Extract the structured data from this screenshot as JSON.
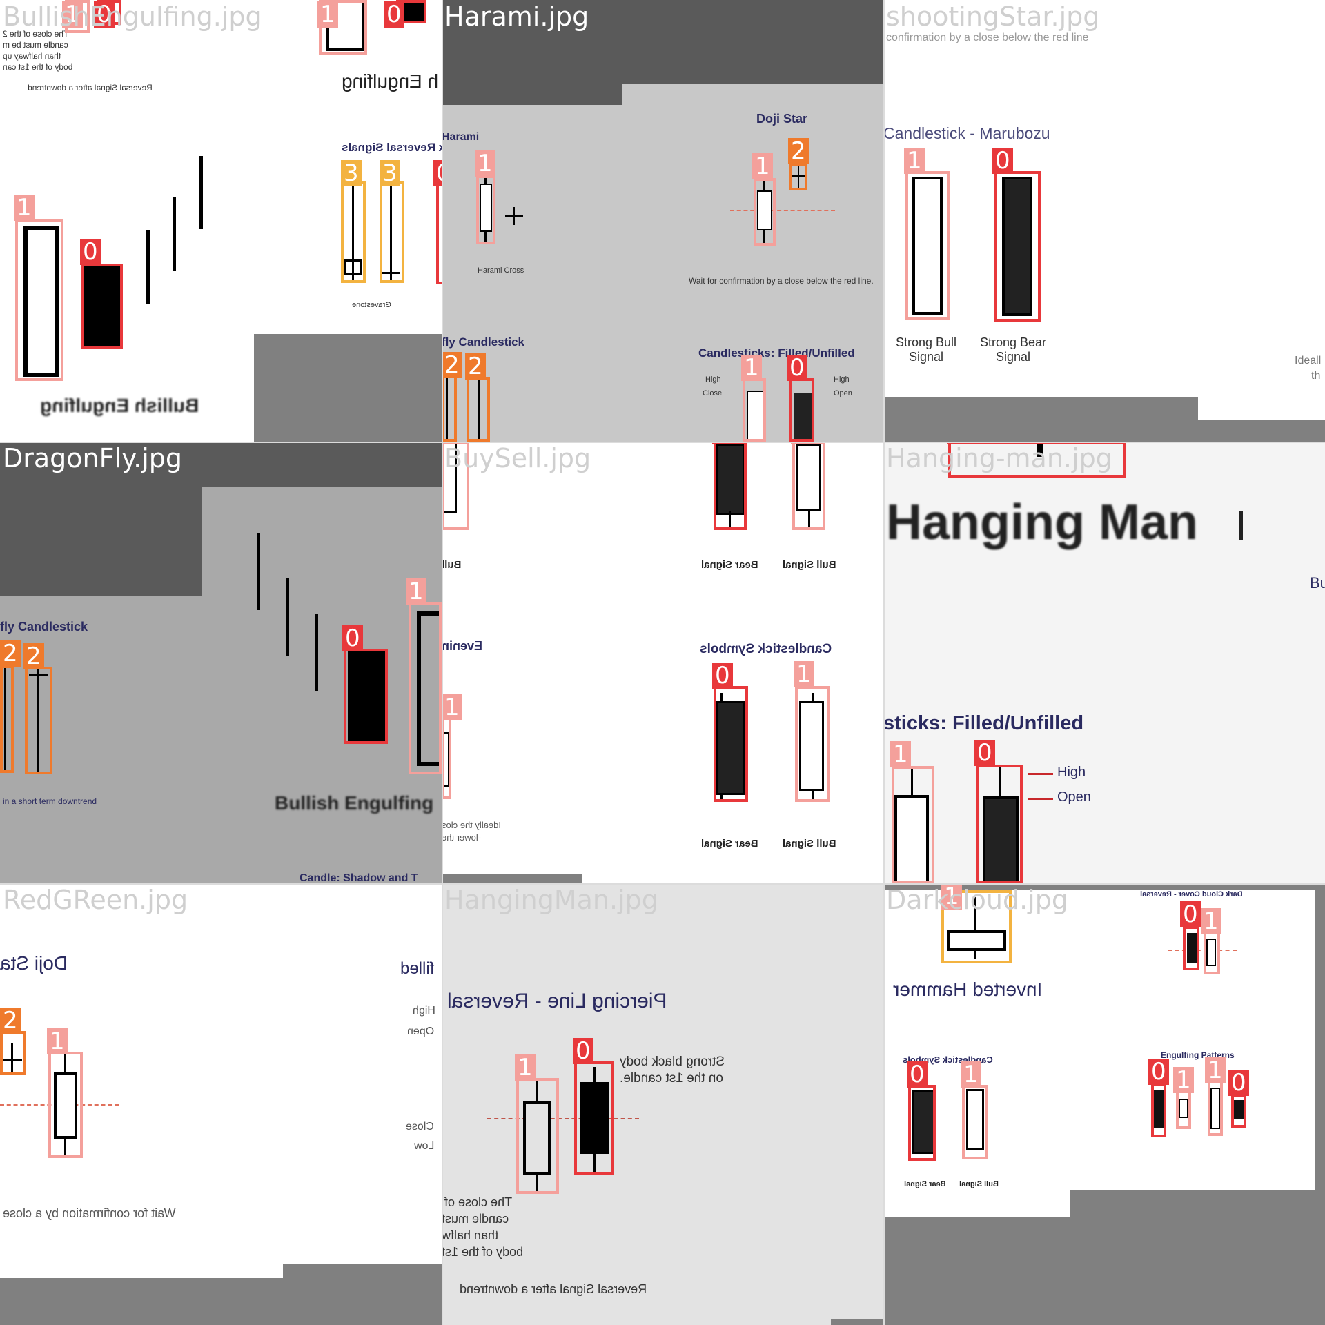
{
  "tiles": {
    "t1": {
      "name": "BullishEngulfing.jpg",
      "caption": "Bullish Engulfing",
      "caption2": "h Engulfing",
      "reversal": "Reversal Signal after a downtrend",
      "signals": "k Reversal Signals",
      "gravestone": "Gravestone",
      "note1": "The close of the 2",
      "note2": "candle must be m",
      "note3": "than halfway up",
      "note4": "body of the 1st can"
    },
    "t2": {
      "name": "Harami.jpg",
      "harami": "Harami",
      "harami_cross": "Harami Cross",
      "doji_star": "Doji Star",
      "wait": "Wait for confirmation by a close below the red line.",
      "fly": "fly Candlestick",
      "filled": "Candlesticks: Filled/Unfilled",
      "high": "High",
      "close": "Close",
      "open": "Open"
    },
    "t3": {
      "name": "shootingStar.jpg",
      "confirm": "confirmation by a close below the red line",
      "title": "Candlestick - Marubozu",
      "bull": "Strong Bull Signal",
      "bear": "Strong Bear Signal",
      "ideal": "Ideall",
      "ideal2": "th"
    },
    "t4": {
      "name": "DragonFly.jpg",
      "fly": "fly Candlestick",
      "downtrend": "in a short term downtrend",
      "engulf": "Bullish Engulfing",
      "candle": "Candle: Shadow and T"
    },
    "t5": {
      "name": "BuySell.jpg",
      "bull": "Bull",
      "bear_sig": "Bear Signal",
      "bull_sig": "Bull Signal",
      "even": "Evenin",
      "symbols": "Candlestick Symbols",
      "ideal": "Ideally the clos",
      "lower": "-lower the"
    },
    "t6": {
      "name": "Hanging-man.jpg",
      "title": "Hanging Man",
      "bu": "Bu",
      "filled": "sticks: Filled/Unfilled",
      "high": "High",
      "open": "Open"
    },
    "t7": {
      "name": "RedGReen.jpg",
      "doji": "Doji Sta",
      "filled": "filled",
      "high": "High",
      "open": "Open",
      "close": "Close",
      "low": "Low",
      "wait": "Wait for confirmation by a close"
    },
    "t8": {
      "name": "HangingMan.jpg",
      "title": "Piercing Line - Reversal",
      "strong1": "Strong black body",
      "strong2": "on the 1st candle.",
      "c1": "The close of",
      "c2": "candle must",
      "c3": "than halfw",
      "c4": "body of the 1st",
      "reversal": "Reversal Signal after a downtrend"
    },
    "t9": {
      "name": "Darkcloud.jpg",
      "hammer": "Inverted Hammer",
      "dark": "Dark Cloud Cover - Reversal",
      "symbols": "Candlestick Symbols",
      "engulf": "Engulfing Patterns",
      "bear": "Bear Signal",
      "bull": "Bull Signal"
    }
  },
  "classes": {
    "c0": "0",
    "c1": "1",
    "c2": "2",
    "c3": "3"
  },
  "colors": {
    "c0": "#e8383b",
    "c1": "#f4a09b",
    "c2": "#ef7a2c",
    "c3": "#f3b340"
  }
}
